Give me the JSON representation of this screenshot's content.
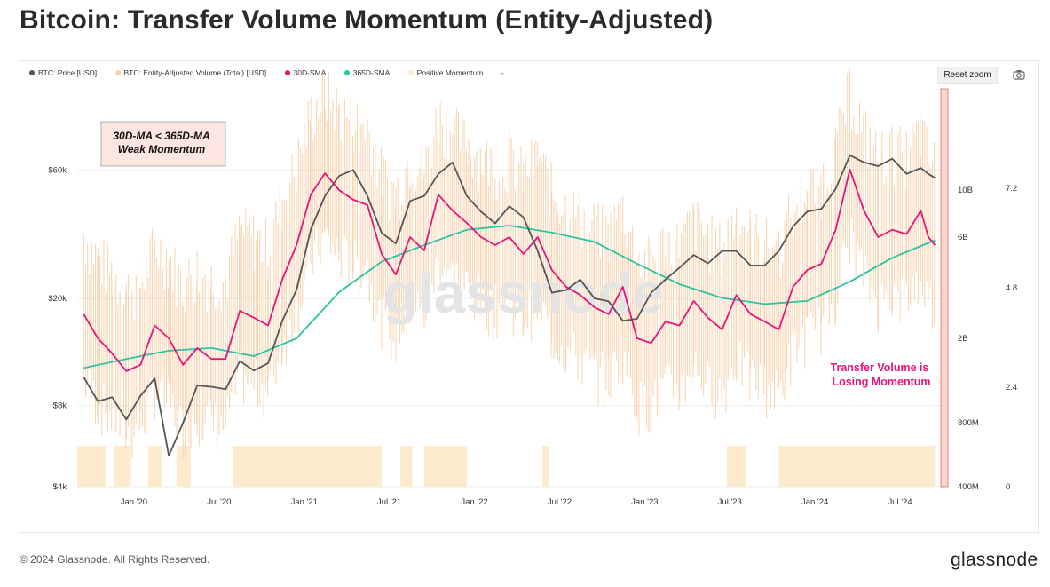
{
  "page": {
    "title": "Bitcoin: Transfer Volume Momentum (Entity-Adjusted)",
    "copyright": "© 2024 Glassnode. All Rights Reserved.",
    "brand": "glassnode",
    "watermark": "glassnode"
  },
  "toolbar": {
    "reset_zoom_label": "Reset zoom",
    "camera_icon": "camera-icon"
  },
  "legend": [
    {
      "label": "BTC: Price [USD]",
      "color": "#555555"
    },
    {
      "label": "BTC: Entity-Adjusted Volume (Total) [USD]",
      "color": "#f7cfa8"
    },
    {
      "label": "30D-SMA",
      "color": "#e6157a"
    },
    {
      "label": "365D-SMA",
      "color": "#2cc3a0"
    },
    {
      "label": "Positive Momentum",
      "color": "#fdebcd"
    },
    {
      "label": "-",
      "color": ""
    }
  ],
  "annotations": {
    "weak_line1": "30D-MA < 365D-MA",
    "weak_line2": "Weak Momentum",
    "losing_line1": "Transfer Volume is",
    "losing_line2": "Losing Momentum"
  },
  "chart_data": {
    "type": "line",
    "x_ticks": [
      "Jan '20",
      "Jul '20",
      "Jan '21",
      "Jul '21",
      "Jan '22",
      "Jul '22",
      "Jan '23",
      "Jul '23",
      "Jan '24",
      "Jul '24"
    ],
    "y_price_axis": {
      "scale": "log",
      "ticks": [
        "$60k",
        "$20k",
        "$8k",
        "$4k"
      ],
      "tick_values": [
        60000,
        20000,
        8000,
        4000
      ],
      "range": [
        4000,
        120000
      ]
    },
    "y_volume_axis": {
      "scale": "log",
      "ticks": [
        "10B",
        "6B",
        "2B",
        "800M",
        "400M"
      ],
      "tick_values": [
        10000000000,
        6000000000,
        2000000000,
        800000000,
        400000000
      ],
      "range": [
        400000000,
        30000000000
      ]
    },
    "y_momentum_axis": {
      "ticks": [
        "7.2",
        "4.8",
        "2.4",
        "0"
      ],
      "tick_values": [
        7.2,
        4.8,
        2.4,
        0
      ],
      "range": [
        0,
        9.6
      ]
    },
    "x_range_months": [
      "2019-09",
      "2024-10"
    ],
    "series": [
      {
        "name": "BTC: Price [USD]",
        "color": "#555555",
        "points": [
          [
            "2019-09-15",
            10200
          ],
          [
            "2019-10-15",
            8300
          ],
          [
            "2019-11-15",
            8600
          ],
          [
            "2019-12-15",
            7100
          ],
          [
            "2020-01-15",
            8700
          ],
          [
            "2020-02-15",
            10100
          ],
          [
            "2020-03-15",
            5200
          ],
          [
            "2020-04-15",
            6900
          ],
          [
            "2020-05-15",
            9500
          ],
          [
            "2020-06-15",
            9400
          ],
          [
            "2020-07-15",
            9200
          ],
          [
            "2020-08-15",
            11700
          ],
          [
            "2020-09-15",
            10800
          ],
          [
            "2020-10-15",
            11500
          ],
          [
            "2020-11-15",
            16500
          ],
          [
            "2020-12-15",
            21500
          ],
          [
            "2021-01-15",
            36000
          ],
          [
            "2021-02-15",
            48000
          ],
          [
            "2021-03-15",
            57000
          ],
          [
            "2021-04-15",
            60000
          ],
          [
            "2021-05-15",
            48000
          ],
          [
            "2021-06-15",
            35000
          ],
          [
            "2021-07-15",
            32000
          ],
          [
            "2021-08-15",
            46000
          ],
          [
            "2021-09-15",
            48000
          ],
          [
            "2021-10-15",
            58000
          ],
          [
            "2021-11-15",
            64000
          ],
          [
            "2021-12-15",
            48000
          ],
          [
            "2022-01-15",
            42000
          ],
          [
            "2022-02-15",
            38000
          ],
          [
            "2022-03-15",
            44000
          ],
          [
            "2022-04-15",
            40000
          ],
          [
            "2022-05-15",
            30000
          ],
          [
            "2022-06-15",
            21000
          ],
          [
            "2022-07-15",
            21500
          ],
          [
            "2022-08-15",
            23500
          ],
          [
            "2022-09-15",
            20000
          ],
          [
            "2022-10-15",
            19500
          ],
          [
            "2022-11-15",
            16500
          ],
          [
            "2022-12-15",
            16800
          ],
          [
            "2023-01-15",
            21000
          ],
          [
            "2023-02-15",
            23500
          ],
          [
            "2023-03-15",
            26000
          ],
          [
            "2023-04-15",
            29000
          ],
          [
            "2023-05-15",
            27000
          ],
          [
            "2023-06-15",
            30000
          ],
          [
            "2023-07-15",
            30000
          ],
          [
            "2023-08-15",
            26500
          ],
          [
            "2023-09-15",
            26500
          ],
          [
            "2023-10-15",
            30000
          ],
          [
            "2023-11-15",
            37000
          ],
          [
            "2023-12-15",
            42000
          ],
          [
            "2024-01-15",
            43000
          ],
          [
            "2024-02-15",
            51000
          ],
          [
            "2024-03-15",
            68000
          ],
          [
            "2024-04-15",
            64000
          ],
          [
            "2024-05-15",
            62000
          ],
          [
            "2024-06-15",
            66000
          ],
          [
            "2024-07-15",
            58000
          ],
          [
            "2024-08-15",
            61000
          ],
          [
            "2024-09-01",
            58000
          ],
          [
            "2024-09-15",
            56000
          ]
        ]
      },
      {
        "name": "30D-SMA",
        "color": "#e6157a",
        "points": [
          [
            "2019-09-15",
            2600000000
          ],
          [
            "2019-10-15",
            2000000000
          ],
          [
            "2019-11-15",
            1700000000
          ],
          [
            "2019-12-15",
            1400000000
          ],
          [
            "2020-01-15",
            1500000000
          ],
          [
            "2020-02-15",
            2300000000
          ],
          [
            "2020-03-15",
            2000000000
          ],
          [
            "2020-04-15",
            1500000000
          ],
          [
            "2020-05-15",
            1800000000
          ],
          [
            "2020-06-15",
            1600000000
          ],
          [
            "2020-07-15",
            1600000000
          ],
          [
            "2020-08-15",
            2700000000
          ],
          [
            "2020-09-15",
            2500000000
          ],
          [
            "2020-10-15",
            2300000000
          ],
          [
            "2020-11-15",
            3800000000
          ],
          [
            "2020-12-15",
            5500000000
          ],
          [
            "2021-01-15",
            9500000000
          ],
          [
            "2021-02-15",
            12000000000
          ],
          [
            "2021-03-15",
            10000000000
          ],
          [
            "2021-04-15",
            9000000000
          ],
          [
            "2021-05-15",
            8500000000
          ],
          [
            "2021-06-15",
            5000000000
          ],
          [
            "2021-07-15",
            4000000000
          ],
          [
            "2021-08-15",
            6000000000
          ],
          [
            "2021-09-15",
            5200000000
          ],
          [
            "2021-10-15",
            9500000000
          ],
          [
            "2021-11-15",
            8000000000
          ],
          [
            "2021-12-15",
            7000000000
          ],
          [
            "2022-01-15",
            6000000000
          ],
          [
            "2022-02-15",
            5500000000
          ],
          [
            "2022-03-15",
            6000000000
          ],
          [
            "2022-04-15",
            5000000000
          ],
          [
            "2022-05-15",
            6000000000
          ],
          [
            "2022-06-15",
            4200000000
          ],
          [
            "2022-07-15",
            3500000000
          ],
          [
            "2022-08-15",
            3200000000
          ],
          [
            "2022-09-15",
            2800000000
          ],
          [
            "2022-10-15",
            2600000000
          ],
          [
            "2022-11-15",
            3500000000
          ],
          [
            "2022-12-15",
            2000000000
          ],
          [
            "2023-01-15",
            1900000000
          ],
          [
            "2023-02-15",
            2400000000
          ],
          [
            "2023-03-15",
            2300000000
          ],
          [
            "2023-04-15",
            3000000000
          ],
          [
            "2023-05-15",
            2500000000
          ],
          [
            "2023-06-15",
            2200000000
          ],
          [
            "2023-07-15",
            3200000000
          ],
          [
            "2023-08-15",
            2600000000
          ],
          [
            "2023-09-15",
            2400000000
          ],
          [
            "2023-10-15",
            2200000000
          ],
          [
            "2023-11-15",
            3500000000
          ],
          [
            "2023-12-15",
            4200000000
          ],
          [
            "2024-01-15",
            4500000000
          ],
          [
            "2024-02-15",
            6500000000
          ],
          [
            "2024-03-15",
            12500000000
          ],
          [
            "2024-04-15",
            8000000000
          ],
          [
            "2024-05-15",
            6000000000
          ],
          [
            "2024-06-15",
            6500000000
          ],
          [
            "2024-07-15",
            6200000000
          ],
          [
            "2024-08-15",
            8000000000
          ],
          [
            "2024-09-01",
            6000000000
          ],
          [
            "2024-09-15",
            5500000000
          ]
        ]
      },
      {
        "name": "365D-SMA",
        "color": "#2cc3a0",
        "points": [
          [
            "2019-09-15",
            1450000000
          ],
          [
            "2019-12-15",
            1600000000
          ],
          [
            "2020-03-15",
            1750000000
          ],
          [
            "2020-06-15",
            1800000000
          ],
          [
            "2020-09-15",
            1650000000
          ],
          [
            "2020-12-15",
            2000000000
          ],
          [
            "2021-03-15",
            3300000000
          ],
          [
            "2021-06-15",
            4600000000
          ],
          [
            "2021-09-15",
            5500000000
          ],
          [
            "2021-12-15",
            6500000000
          ],
          [
            "2022-03-15",
            6800000000
          ],
          [
            "2022-06-15",
            6300000000
          ],
          [
            "2022-09-15",
            5700000000
          ],
          [
            "2022-12-15",
            4500000000
          ],
          [
            "2023-03-15",
            3600000000
          ],
          [
            "2023-06-15",
            3100000000
          ],
          [
            "2023-09-15",
            2900000000
          ],
          [
            "2023-12-15",
            3000000000
          ],
          [
            "2024-03-15",
            3700000000
          ],
          [
            "2024-06-15",
            4800000000
          ],
          [
            "2024-09-15",
            5800000000
          ]
        ]
      }
    ],
    "positive_momentum_periods": [
      [
        "2019-09-01",
        "2019-11-01"
      ],
      [
        "2019-11-20",
        "2019-12-25"
      ],
      [
        "2020-02-01",
        "2020-03-01"
      ],
      [
        "2020-04-01",
        "2020-05-01"
      ],
      [
        "2020-08-01",
        "2021-06-15"
      ],
      [
        "2021-07-25",
        "2021-08-20"
      ],
      [
        "2021-09-15",
        "2021-12-15"
      ],
      [
        "2022-05-25",
        "2022-06-10"
      ],
      [
        "2023-06-25",
        "2023-08-05"
      ],
      [
        "2023-10-15",
        "2024-09-15"
      ]
    ],
    "legend_position": "top-left",
    "grid": true
  }
}
